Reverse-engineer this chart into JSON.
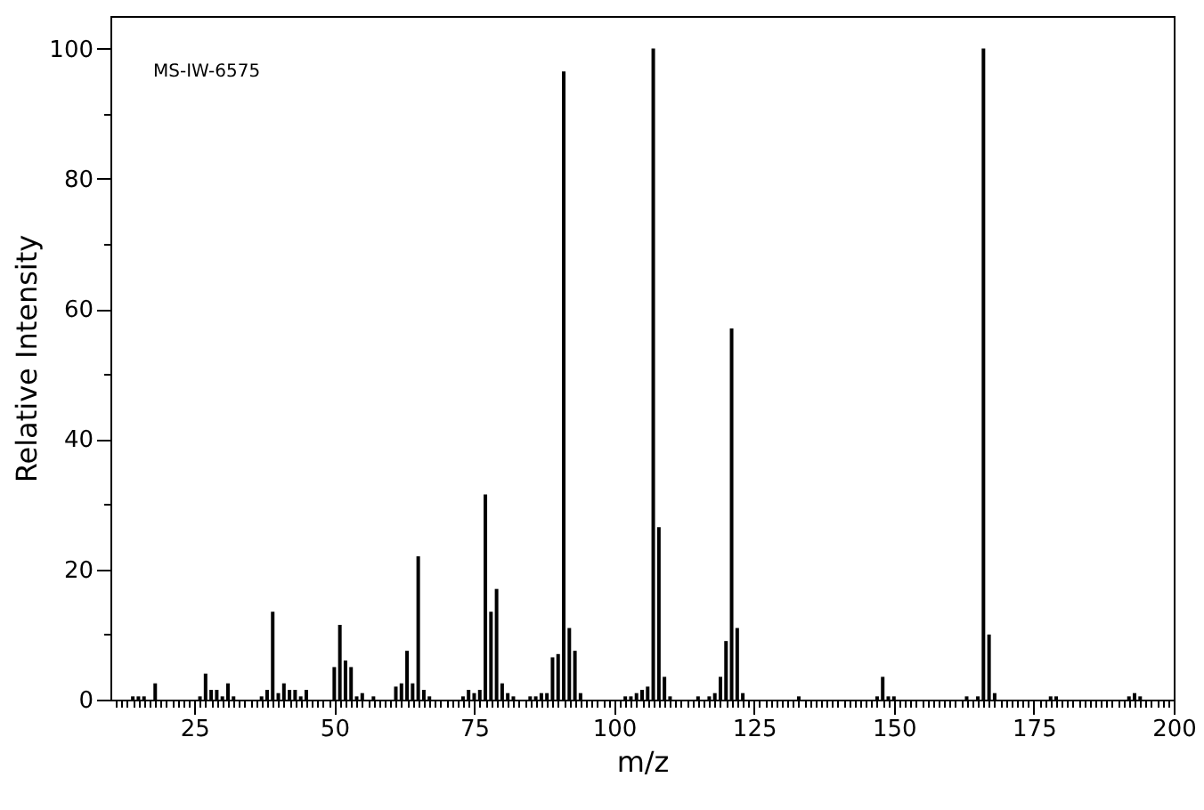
{
  "chart_data": {
    "type": "bar",
    "xlabel": "m/z",
    "ylabel": "Relative Intensity",
    "annotations": [
      "MS-IW-6575"
    ],
    "x": [
      14,
      15,
      16,
      18,
      26,
      27,
      28,
      29,
      30,
      31,
      32,
      37,
      38,
      39,
      40,
      41,
      42,
      43,
      44,
      45,
      50,
      51,
      52,
      53,
      54,
      55,
      57,
      61,
      62,
      63,
      64,
      65,
      66,
      67,
      73,
      74,
      75,
      76,
      77,
      78,
      79,
      80,
      81,
      82,
      85,
      86,
      87,
      88,
      89,
      90,
      91,
      92,
      93,
      94,
      102,
      103,
      104,
      105,
      106,
      107,
      108,
      109,
      110,
      115,
      117,
      118,
      119,
      120,
      121,
      122,
      123,
      133,
      147,
      148,
      149,
      150,
      163,
      165,
      166,
      167,
      168,
      178,
      179,
      192,
      193,
      194
    ],
    "series": [
      {
        "color": "#000000",
        "values": [
          0.5,
          0.5,
          0.5,
          2.5,
          0.5,
          4,
          1.5,
          1.5,
          0.5,
          2.5,
          0.5,
          0.5,
          1.5,
          13.5,
          1,
          2.5,
          1.5,
          1.5,
          0.5,
          1.5,
          5,
          11.5,
          6,
          5,
          0.5,
          1,
          0.5,
          2,
          2.5,
          7.5,
          2.5,
          22,
          1.5,
          0.5,
          0.5,
          1.5,
          1,
          1.5,
          31.5,
          13.5,
          17,
          2.5,
          1,
          0.5,
          0.5,
          0.5,
          1,
          1,
          6.5,
          7,
          96.5,
          11,
          7.5,
          1,
          0.5,
          0.5,
          1,
          1.5,
          2,
          100,
          26.5,
          3.5,
          0.5,
          0.5,
          0.5,
          1,
          3.5,
          9,
          57,
          11,
          1,
          0.5,
          0.5,
          3.5,
          0.5,
          0.5,
          0.5,
          0.5,
          100,
          10,
          1,
          0.5,
          0.5,
          0.5,
          1,
          0.5
        ]
      }
    ],
    "xlim": [
      10,
      200
    ],
    "xticks": [
      {
        "value": 11,
        "label": null
      },
      {
        "value": 12,
        "label": null
      },
      {
        "value": 13,
        "label": null
      },
      {
        "value": 14,
        "label": null
      },
      {
        "value": 15,
        "label": null
      },
      {
        "value": 16,
        "label": null
      },
      {
        "value": 17,
        "label": null
      },
      {
        "value": 18,
        "label": null
      },
      {
        "value": 19,
        "label": null
      },
      {
        "value": 20,
        "label": null
      },
      {
        "value": 21,
        "label": null
      },
      {
        "value": 22,
        "label": null
      },
      {
        "value": 23,
        "label": null
      },
      {
        "value": 24,
        "label": null
      },
      25,
      {
        "value": 26,
        "label": null
      },
      {
        "value": 27,
        "label": null
      },
      {
        "value": 28,
        "label": null
      },
      {
        "value": 29,
        "label": null
      },
      {
        "value": 30,
        "label": null
      },
      {
        "value": 31,
        "label": null
      },
      {
        "value": 32,
        "label": null
      },
      {
        "value": 33,
        "label": null
      },
      {
        "value": 34,
        "label": null
      },
      {
        "value": 35,
        "label": null
      },
      {
        "value": 36,
        "label": null
      },
      {
        "value": 37,
        "label": null
      },
      {
        "value": 38,
        "label": null
      },
      {
        "value": 39,
        "label": null
      },
      {
        "value": 40,
        "label": null
      },
      {
        "value": 41,
        "label": null
      },
      {
        "value": 42,
        "label": null
      },
      {
        "value": 43,
        "label": null
      },
      {
        "value": 44,
        "label": null
      },
      {
        "value": 45,
        "label": null
      },
      {
        "value": 46,
        "label": null
      },
      {
        "value": 47,
        "label": null
      },
      {
        "value": 48,
        "label": null
      },
      {
        "value": 49,
        "label": null
      },
      50,
      {
        "value": 51,
        "label": null
      },
      {
        "value": 52,
        "label": null
      },
      {
        "value": 53,
        "label": null
      },
      {
        "value": 54,
        "label": null
      },
      {
        "value": 55,
        "label": null
      },
      {
        "value": 56,
        "label": null
      },
      {
        "value": 57,
        "label": null
      },
      {
        "value": 58,
        "label": null
      },
      {
        "value": 59,
        "label": null
      },
      {
        "value": 60,
        "label": null
      },
      {
        "value": 61,
        "label": null
      },
      {
        "value": 62,
        "label": null
      },
      {
        "value": 63,
        "label": null
      },
      {
        "value": 64,
        "label": null
      },
      {
        "value": 65,
        "label": null
      },
      {
        "value": 66,
        "label": null
      },
      {
        "value": 67,
        "label": null
      },
      {
        "value": 68,
        "label": null
      },
      {
        "value": 69,
        "label": null
      },
      {
        "value": 70,
        "label": null
      },
      {
        "value": 71,
        "label": null
      },
      {
        "value": 72,
        "label": null
      },
      {
        "value": 73,
        "label": null
      },
      {
        "value": 74,
        "label": null
      },
      75,
      {
        "value": 76,
        "label": null
      },
      {
        "value": 77,
        "label": null
      },
      {
        "value": 78,
        "label": null
      },
      {
        "value": 79,
        "label": null
      },
      {
        "value": 80,
        "label": null
      },
      {
        "value": 81,
        "label": null
      },
      {
        "value": 82,
        "label": null
      },
      {
        "value": 83,
        "label": null
      },
      {
        "value": 84,
        "label": null
      },
      {
        "value": 85,
        "label": null
      },
      {
        "value": 86,
        "label": null
      },
      {
        "value": 87,
        "label": null
      },
      {
        "value": 88,
        "label": null
      },
      {
        "value": 89,
        "label": null
      },
      {
        "value": 90,
        "label": null
      },
      {
        "value": 91,
        "label": null
      },
      {
        "value": 92,
        "label": null
      },
      {
        "value": 93,
        "label": null
      },
      {
        "value": 94,
        "label": null
      },
      {
        "value": 95,
        "label": null
      },
      {
        "value": 96,
        "label": null
      },
      {
        "value": 97,
        "label": null
      },
      {
        "value": 98,
        "label": null
      },
      {
        "value": 99,
        "label": null
      },
      100,
      {
        "value": 101,
        "label": null
      },
      {
        "value": 102,
        "label": null
      },
      {
        "value": 103,
        "label": null
      },
      {
        "value": 104,
        "label": null
      },
      {
        "value": 105,
        "label": null
      },
      {
        "value": 106,
        "label": null
      },
      {
        "value": 107,
        "label": null
      },
      {
        "value": 108,
        "label": null
      },
      {
        "value": 109,
        "label": null
      },
      {
        "value": 110,
        "label": null
      },
      {
        "value": 111,
        "label": null
      },
      {
        "value": 112,
        "label": null
      },
      {
        "value": 113,
        "label": null
      },
      {
        "value": 114,
        "label": null
      },
      {
        "value": 115,
        "label": null
      },
      {
        "value": 116,
        "label": null
      },
      {
        "value": 117,
        "label": null
      },
      {
        "value": 118,
        "label": null
      },
      {
        "value": 119,
        "label": null
      },
      {
        "value": 120,
        "label": null
      },
      {
        "value": 121,
        "label": null
      },
      {
        "value": 122,
        "label": null
      },
      {
        "value": 123,
        "label": null
      },
      {
        "value": 124,
        "label": null
      },
      125,
      {
        "value": 126,
        "label": null
      },
      {
        "value": 127,
        "label": null
      },
      {
        "value": 128,
        "label": null
      },
      {
        "value": 129,
        "label": null
      },
      {
        "value": 130,
        "label": null
      },
      {
        "value": 131,
        "label": null
      },
      {
        "value": 132,
        "label": null
      },
      {
        "value": 133,
        "label": null
      },
      {
        "value": 134,
        "label": null
      },
      {
        "value": 135,
        "label": null
      },
      {
        "value": 136,
        "label": null
      },
      {
        "value": 137,
        "label": null
      },
      {
        "value": 138,
        "label": null
      },
      {
        "value": 139,
        "label": null
      },
      {
        "value": 140,
        "label": null
      },
      {
        "value": 141,
        "label": null
      },
      {
        "value": 142,
        "label": null
      },
      {
        "value": 143,
        "label": null
      },
      {
        "value": 144,
        "label": null
      },
      {
        "value": 145,
        "label": null
      },
      {
        "value": 146,
        "label": null
      },
      {
        "value": 147,
        "label": null
      },
      {
        "value": 148,
        "label": null
      },
      {
        "value": 149,
        "label": null
      },
      150,
      {
        "value": 151,
        "label": null
      },
      {
        "value": 152,
        "label": null
      },
      {
        "value": 153,
        "label": null
      },
      {
        "value": 154,
        "label": null
      },
      {
        "value": 155,
        "label": null
      },
      {
        "value": 156,
        "label": null
      },
      {
        "value": 157,
        "label": null
      },
      {
        "value": 158,
        "label": null
      },
      {
        "value": 159,
        "label": null
      },
      {
        "value": 160,
        "label": null
      },
      {
        "value": 161,
        "label": null
      },
      {
        "value": 162,
        "label": null
      },
      {
        "value": 163,
        "label": null
      },
      {
        "value": 164,
        "label": null
      },
      {
        "value": 165,
        "label": null
      },
      {
        "value": 166,
        "label": null
      },
      {
        "value": 167,
        "label": null
      },
      {
        "value": 168,
        "label": null
      },
      {
        "value": 169,
        "label": null
      },
      {
        "value": 170,
        "label": null
      },
      {
        "value": 171,
        "label": null
      },
      {
        "value": 172,
        "label": null
      },
      {
        "value": 173,
        "label": null
      },
      {
        "value": 174,
        "label": null
      },
      175,
      {
        "value": 176,
        "label": null
      },
      {
        "value": 177,
        "label": null
      },
      {
        "value": 178,
        "label": null
      },
      {
        "value": 179,
        "label": null
      },
      {
        "value": 180,
        "label": null
      },
      {
        "value": 181,
        "label": null
      },
      {
        "value": 182,
        "label": null
      },
      {
        "value": 183,
        "label": null
      },
      {
        "value": 184,
        "label": null
      },
      {
        "value": 185,
        "label": null
      },
      {
        "value": 186,
        "label": null
      },
      {
        "value": 187,
        "label": null
      },
      {
        "value": 188,
        "label": null
      },
      {
        "value": 189,
        "label": null
      },
      {
        "value": 190,
        "label": null
      },
      {
        "value": 191,
        "label": null
      },
      {
        "value": 192,
        "label": null
      },
      {
        "value": 193,
        "label": null
      },
      {
        "value": 194,
        "label": null
      },
      {
        "value": 195,
        "label": null
      },
      {
        "value": 196,
        "label": null
      },
      {
        "value": 197,
        "label": null
      },
      {
        "value": 198,
        "label": null
      },
      {
        "value": 199,
        "label": null
      },
      200
    ],
    "ylim": [
      0,
      105
    ],
    "yticks": [
      0,
      {
        "value": 10,
        "label": null
      },
      20,
      {
        "value": 30,
        "label": null
      },
      40,
      {
        "value": 50,
        "label": null
      },
      60,
      {
        "value": 70,
        "label": null
      },
      80,
      {
        "value": 90,
        "label": null
      },
      100
    ],
    "grid": false
  }
}
